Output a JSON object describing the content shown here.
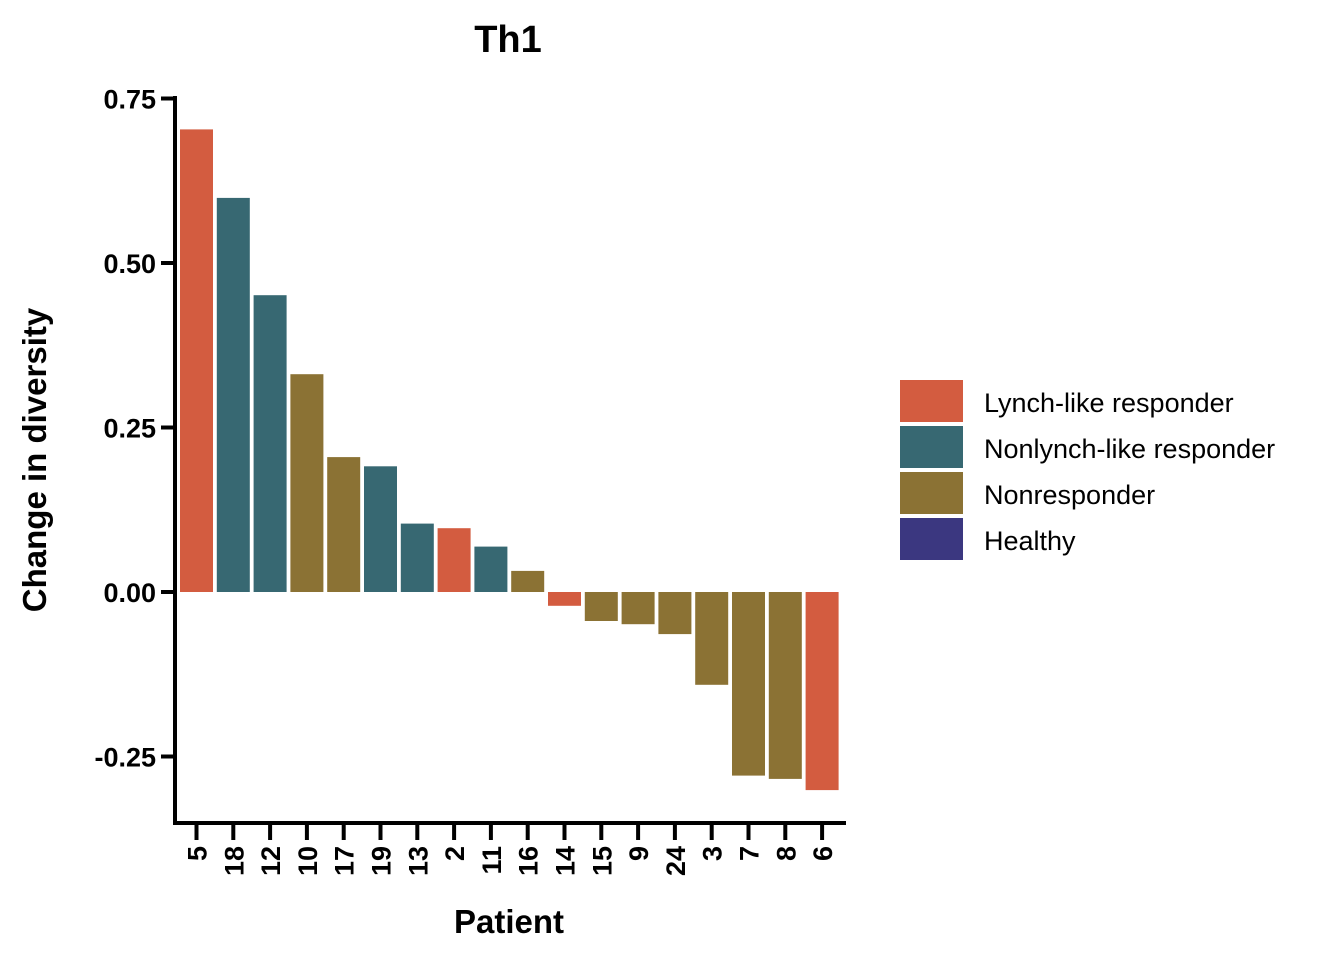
{
  "chart_data": {
    "type": "bar",
    "title": "Th1",
    "xlabel": "Patient",
    "ylabel": "Change in diversity",
    "ylim": [
      -0.35,
      0.75
    ],
    "yticks": [
      0.75,
      0.5,
      0.25,
      0.0,
      -0.25
    ],
    "ytick_labels": [
      "0.75",
      "0.50",
      "0.25",
      "0.00",
      "-0.25"
    ],
    "grid": false,
    "legend_position": "right",
    "categories": [
      "5",
      "18",
      "12",
      "10",
      "17",
      "19",
      "13",
      "2",
      "11",
      "16",
      "14",
      "15",
      "9",
      "24",
      "3",
      "7",
      "8",
      "6"
    ],
    "values": [
      0.703,
      0.599,
      0.451,
      0.331,
      0.205,
      0.191,
      0.104,
      0.097,
      0.069,
      0.032,
      -0.021,
      -0.044,
      -0.049,
      -0.064,
      -0.141,
      -0.279,
      -0.284,
      -0.301
    ],
    "groups": [
      "Lynch-like responder",
      "Nonlynch-like responder",
      "Nonlynch-like responder",
      "Nonresponder",
      "Nonresponder",
      "Nonlynch-like responder",
      "Nonlynch-like responder",
      "Lynch-like responder",
      "Nonlynch-like responder",
      "Nonresponder",
      "Lynch-like responder",
      "Nonresponder",
      "Nonresponder",
      "Nonresponder",
      "Nonresponder",
      "Nonresponder",
      "Nonresponder",
      "Lynch-like responder"
    ],
    "legend": [
      {
        "name": "Lynch-like responder",
        "color": "#d35c40"
      },
      {
        "name": "Nonlynch-like responder",
        "color": "#376872"
      },
      {
        "name": "Nonresponder",
        "color": "#8b7234"
      },
      {
        "name": "Healthy",
        "color": "#3b3780"
      }
    ]
  }
}
